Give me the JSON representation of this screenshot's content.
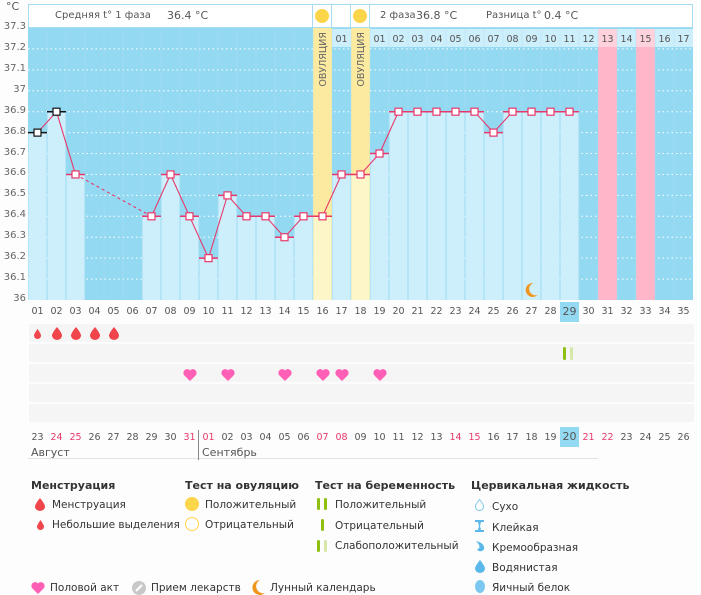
{
  "chart_data": {
    "type": "line",
    "unit_label": "°C",
    "ylim": [
      36.0,
      37.3
    ],
    "yticks": [
      "36",
      "36.1",
      "36.2",
      "36.3",
      "36.4",
      "36.5",
      "36.6",
      "36.7",
      "36.8",
      "36.9",
      "37",
      "37.1",
      "37.2",
      "37.3"
    ],
    "cycle_days": [
      "01",
      "02",
      "03",
      "04",
      "05",
      "06",
      "07",
      "08",
      "09",
      "10",
      "11",
      "12",
      "13",
      "14",
      "15",
      "16",
      "17",
      "18",
      "19",
      "20",
      "21",
      "22",
      "23",
      "24",
      "25",
      "26",
      "27",
      "28",
      "29",
      "30",
      "31",
      "32",
      "33",
      "34",
      "35"
    ],
    "temperatures": [
      36.8,
      36.9,
      36.6,
      null,
      null,
      null,
      36.4,
      36.6,
      36.4,
      36.2,
      36.5,
      36.4,
      36.4,
      36.3,
      36.4,
      36.4,
      36.6,
      36.6,
      36.7,
      36.9,
      36.9,
      36.9,
      36.9,
      36.9,
      36.8,
      36.9,
      36.9,
      36.9,
      36.9,
      null,
      null,
      null,
      null,
      null,
      null
    ],
    "excluded_points": [
      1,
      2
    ],
    "dashed_gap": [
      3,
      7
    ],
    "ovulation_days": [
      16,
      18
    ],
    "ovulation_label": "ОВУЛЯЦИЯ",
    "pink_days": [
      31,
      33
    ],
    "current_day": 29,
    "top_labels": [
      "",
      "",
      "",
      "",
      "",
      "",
      "",
      "",
      "",
      "",
      "",
      "",
      "",
      "",
      "",
      "",
      "01",
      "",
      "01",
      "02",
      "03",
      "04",
      "05",
      "06",
      "07",
      "08",
      "09",
      "10",
      "11",
      "12",
      "13",
      "14",
      "15",
      "16",
      "17"
    ],
    "top_labels_pink": [
      31,
      33
    ],
    "moon_day": 27,
    "grid": true
  },
  "header": {
    "phase1_label": "Средняя t° 1 фаза",
    "phase1_value": "36.4 °C",
    "phase2_label": "2 фаза",
    "phase2_value": "36.8 °C",
    "diff_label": "Разница t°",
    "diff_value": "0.4 °C"
  },
  "markers": {
    "menstruation": [
      {
        "day": 1,
        "type": "light"
      },
      {
        "day": 2,
        "type": "full"
      },
      {
        "day": 3,
        "type": "full"
      },
      {
        "day": 4,
        "type": "full"
      },
      {
        "day": 5,
        "type": "full"
      }
    ],
    "pregnancy_test": [
      {
        "day": 29,
        "type": "weak-positive"
      }
    ],
    "intercourse_days": [
      9,
      11,
      14,
      16,
      17,
      19
    ]
  },
  "calendar": {
    "dates": [
      "23",
      "24",
      "25",
      "26",
      "27",
      "28",
      "29",
      "30",
      "31",
      "01",
      "02",
      "03",
      "04",
      "05",
      "06",
      "07",
      "08",
      "09",
      "10",
      "11",
      "12",
      "13",
      "14",
      "15",
      "16",
      "17",
      "18",
      "19",
      "20",
      "21",
      "22",
      "23",
      "24",
      "25",
      "26"
    ],
    "red_dates": [
      2,
      3,
      9,
      10,
      16,
      17,
      23,
      24,
      30,
      31
    ],
    "today_index": 29,
    "month1": "Август",
    "month2": "Сентябрь"
  },
  "legend": {
    "menstruation": {
      "title": "Менструация",
      "items": [
        "Менструация",
        "Небольшие выделения"
      ]
    },
    "ovulation_test": {
      "title": "Тест на овуляцию",
      "items": [
        "Положительный",
        "Отрицательный"
      ]
    },
    "pregnancy_test": {
      "title": "Тест на беременность",
      "items": [
        "Положительный",
        "Отрицательный",
        "Слабоположительный"
      ]
    },
    "cervical_fluid": {
      "title": "Цервикальная жидкость",
      "items": [
        "Сухо",
        "Клейкая",
        "Кремообразная",
        "Водянистая",
        "Яичный белок"
      ]
    },
    "other": [
      "Половой акт",
      "Прием лекарств",
      "Лунный календарь"
    ]
  },
  "colors": {
    "sky": "#94d9f2",
    "bar": "#cdeefb",
    "ovulation": "#fbeaa0",
    "pink": "#ffb6c8",
    "line": "#e8386a",
    "drop": "#f0454a",
    "heart": "#ff5fb4",
    "green": "#8fbf10",
    "moon": "#f0961e"
  }
}
